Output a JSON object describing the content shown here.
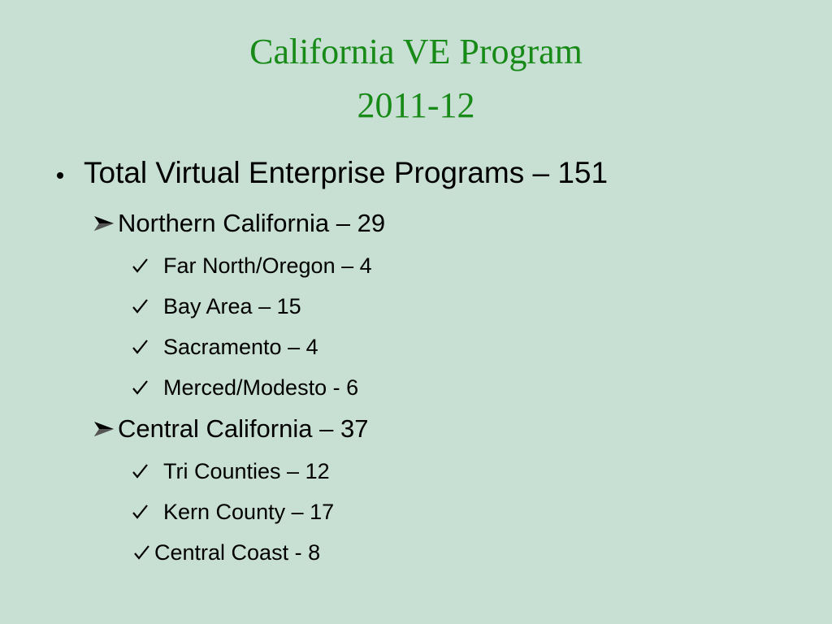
{
  "header": {
    "title": [
      "California VE Program",
      "2011-12"
    ]
  },
  "body": {
    "total": "Total Virtual Enterprise Programs – 151",
    "groups": [
      {
        "label": "Northern California – 29",
        "items": [
          "Far North/Oregon – 4",
          "Bay Area – 15",
          "Sacramento – 4",
          "Merced/Modesto - 6"
        ]
      },
      {
        "label": "Central California – 37",
        "items": [
          "Tri Counties – 12",
          "Kern County – 17",
          "Central Coast - 8"
        ]
      }
    ]
  }
}
